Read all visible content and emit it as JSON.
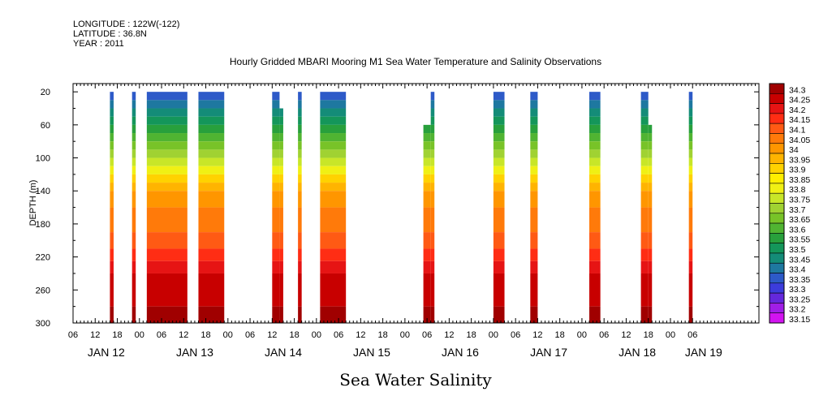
{
  "header": {
    "longitude": "LONGITUDE : 122W(-122)",
    "latitude": "LATITUDE : 36.8N",
    "year": "YEAR : 2011"
  },
  "chart_data": {
    "type": "heatmap",
    "title": "Hourly Gridded MBARI Mooring M1 Sea Water Temperature and Salinity Observations",
    "xlabel": "",
    "ylabel": "DEPTH (m)",
    "footer_title": "Sea Water Salinity",
    "x_unit": "hours since 2011-01-11 18:00",
    "xlim": [
      0,
      186
    ],
    "ylim": [
      300,
      10
    ],
    "y_ticks": [
      20,
      60,
      100,
      140,
      180,
      220,
      260,
      300
    ],
    "x_hour_ticks": [
      {
        "t": 0,
        "label": "06"
      },
      {
        "t": 6,
        "label": "12"
      },
      {
        "t": 12,
        "label": "18"
      },
      {
        "t": 18,
        "label": "00"
      },
      {
        "t": 24,
        "label": "06"
      },
      {
        "t": 30,
        "label": "12"
      },
      {
        "t": 36,
        "label": "18"
      },
      {
        "t": 42,
        "label": "00"
      },
      {
        "t": 48,
        "label": "06"
      },
      {
        "t": 54,
        "label": "12"
      },
      {
        "t": 60,
        "label": "18"
      },
      {
        "t": 66,
        "label": "00"
      },
      {
        "t": 72,
        "label": "06"
      },
      {
        "t": 78,
        "label": "12"
      },
      {
        "t": 84,
        "label": "18"
      },
      {
        "t": 90,
        "label": "00"
      },
      {
        "t": 96,
        "label": "06"
      },
      {
        "t": 102,
        "label": "12"
      },
      {
        "t": 108,
        "label": "18"
      },
      {
        "t": 114,
        "label": "00"
      },
      {
        "t": 120,
        "label": "06"
      },
      {
        "t": 126,
        "label": "12"
      },
      {
        "t": 132,
        "label": "18"
      },
      {
        "t": 138,
        "label": "00"
      },
      {
        "t": 144,
        "label": "06"
      },
      {
        "t": 150,
        "label": "12"
      },
      {
        "t": 156,
        "label": "18"
      },
      {
        "t": 162,
        "label": "00"
      },
      {
        "t": 168,
        "label": "06"
      }
    ],
    "x_day_labels": [
      {
        "t": 9,
        "label": "JAN 12"
      },
      {
        "t": 33,
        "label": "JAN 13"
      },
      {
        "t": 57,
        "label": "JAN 14"
      },
      {
        "t": 81,
        "label": "JAN 15"
      },
      {
        "t": 105,
        "label": "JAN 16"
      },
      {
        "t": 129,
        "label": "JAN 17"
      },
      {
        "t": 153,
        "label": "JAN 18"
      },
      {
        "t": 171,
        "label": "JAN 19"
      }
    ],
    "colorbar": {
      "levels": [
        "34.3",
        "34.25",
        "34.2",
        "34.15",
        "34.1",
        "34.05",
        "34",
        "33.95",
        "33.9",
        "33.85",
        "33.8",
        "33.75",
        "33.7",
        "33.65",
        "33.6",
        "33.55",
        "33.5",
        "33.45",
        "33.4",
        "33.35",
        "33.3",
        "33.25",
        "33.2",
        "33.15"
      ],
      "colors": [
        "#a00000",
        "#c80000",
        "#e61414",
        "#ff2d14",
        "#ff5a14",
        "#ff7a0a",
        "#ff9600",
        "#ffb400",
        "#ffd200",
        "#ffee00",
        "#f0f014",
        "#c8e628",
        "#a0d232",
        "#78c328",
        "#50b432",
        "#28a03c",
        "#14965a",
        "#148c78",
        "#1e78a0",
        "#2d5ac8",
        "#3c3cdc",
        "#6428dc",
        "#a01ee6",
        "#d214f0"
      ]
    },
    "segments": [
      {
        "t0": 10,
        "t1": 11,
        "top": 20
      },
      {
        "t0": 16,
        "t1": 17,
        "top": 20
      },
      {
        "t0": 20,
        "t1": 31,
        "top": 20
      },
      {
        "t0": 34,
        "t1": 41,
        "top": 20
      },
      {
        "t0": 54,
        "t1": 56,
        "top": 20,
        "top_right": 40
      },
      {
        "t0": 56,
        "t1": 57,
        "top": 40
      },
      {
        "t0": 61,
        "t1": 62,
        "top": 20
      },
      {
        "t0": 67,
        "t1": 74,
        "top": 20
      },
      {
        "t0": 95,
        "t1": 97,
        "top": 60
      },
      {
        "t0": 97,
        "t1": 98,
        "top": 20
      },
      {
        "t0": 114,
        "t1": 117,
        "top": 20
      },
      {
        "t0": 124,
        "t1": 126,
        "top": 20
      },
      {
        "t0": 140,
        "t1": 143,
        "top": 20
      },
      {
        "t0": 154,
        "t1": 156,
        "top": 20
      },
      {
        "t0": 156,
        "t1": 157,
        "top": 60
      },
      {
        "t0": 167,
        "t1": 168,
        "top": 20
      }
    ],
    "salinity_profile": [
      {
        "depth": 20,
        "value": 33.37
      },
      {
        "depth": 30,
        "value": 33.42
      },
      {
        "depth": 40,
        "value": 33.47
      },
      {
        "depth": 50,
        "value": 33.52
      },
      {
        "depth": 60,
        "value": 33.57
      },
      {
        "depth": 70,
        "value": 33.62
      },
      {
        "depth": 80,
        "value": 33.67
      },
      {
        "depth": 90,
        "value": 33.72
      },
      {
        "depth": 100,
        "value": 33.78
      },
      {
        "depth": 110,
        "value": 33.84
      },
      {
        "depth": 120,
        "value": 33.9
      },
      {
        "depth": 130,
        "value": 33.96
      },
      {
        "depth": 140,
        "value": 34.02
      },
      {
        "depth": 160,
        "value": 34.07
      },
      {
        "depth": 190,
        "value": 34.11
      },
      {
        "depth": 210,
        "value": 34.16
      },
      {
        "depth": 225,
        "value": 34.21
      },
      {
        "depth": 240,
        "value": 34.26
      },
      {
        "depth": 280,
        "value": 34.31
      }
    ]
  }
}
